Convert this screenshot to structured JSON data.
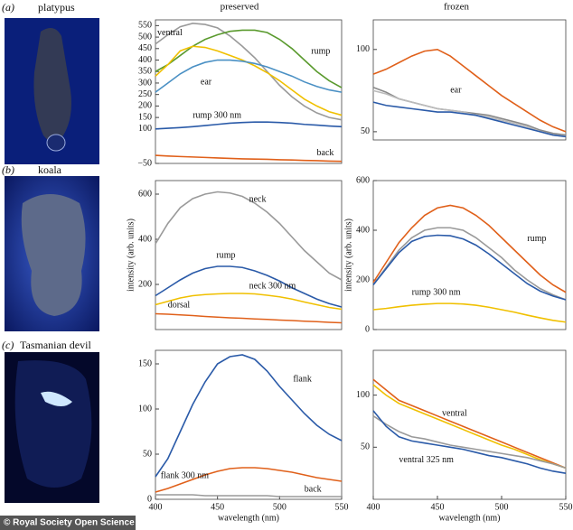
{
  "columns": [
    "preserved",
    "frozen"
  ],
  "panels": [
    {
      "letter": "(a)",
      "name": "platypus"
    },
    {
      "letter": "(b)",
      "name": "koala"
    },
    {
      "letter": "(c)",
      "name": "Tasmanian devil"
    }
  ],
  "credit": "© Royal Society Open Science",
  "chart_data": [
    {
      "type": "line",
      "x": [
        400,
        410,
        420,
        430,
        440,
        450,
        460,
        470,
        480,
        490,
        500,
        510,
        520,
        530,
        540,
        550
      ],
      "xlim": [
        400,
        550
      ],
      "ylim": [
        -50,
        575
      ],
      "yticks": [
        {
          "value": -50,
          "label": "−50"
        },
        100,
        150,
        200,
        250,
        300,
        350,
        400,
        450,
        500,
        550
      ],
      "series": [
        {
          "name": "ventral",
          "color": "#9a9a9a",
          "values": [
            470,
            510,
            545,
            560,
            555,
            540,
            505,
            460,
            410,
            350,
            290,
            240,
            200,
            170,
            150,
            140
          ]
        },
        {
          "name": "rump",
          "color": "#5a9a2e",
          "values": [
            350,
            380,
            420,
            460,
            490,
            510,
            525,
            530,
            530,
            520,
            490,
            450,
            400,
            350,
            310,
            280
          ]
        },
        {
          "color": "#f0c000",
          "values": [
            330,
            380,
            440,
            460,
            455,
            440,
            420,
            400,
            375,
            345,
            310,
            270,
            230,
            200,
            175,
            160
          ]
        },
        {
          "name": "ear",
          "color": "#4a90c4",
          "values": [
            260,
            300,
            340,
            370,
            390,
            400,
            400,
            395,
            385,
            370,
            350,
            330,
            305,
            285,
            270,
            260
          ]
        },
        {
          "name": "rump 300 nm",
          "color": "#2a5aa8",
          "values": [
            100,
            103,
            106,
            110,
            115,
            120,
            125,
            128,
            130,
            130,
            128,
            125,
            120,
            117,
            113,
            110
          ]
        },
        {
          "name": "back",
          "color": "#e0601a",
          "values": [
            -15,
            -18,
            -20,
            -22,
            -24,
            -26,
            -28,
            -30,
            -31,
            -32,
            -34,
            -35,
            -37,
            -38,
            -40,
            -41
          ]
        }
      ]
    },
    {
      "type": "line",
      "x": [
        400,
        410,
        420,
        430,
        440,
        450,
        460,
        470,
        480,
        490,
        500,
        510,
        520,
        530,
        540,
        550
      ],
      "xlim": [
        400,
        550
      ],
      "ylim": [
        45,
        118
      ],
      "yticks": [
        50,
        100
      ],
      "series": [
        {
          "color": "#e0601a",
          "values": [
            85,
            88,
            92,
            96,
            99,
            100,
            96,
            90,
            84,
            78,
            72,
            67,
            62,
            57,
            53,
            50
          ]
        },
        {
          "name": "ear",
          "color": "#8a8a8a",
          "values": [
            77,
            74,
            70,
            68,
            66,
            64,
            63,
            62,
            61,
            60,
            58,
            56,
            54,
            51,
            49,
            48
          ]
        },
        {
          "color": "#bbbbbb",
          "values": [
            75,
            73,
            70,
            68,
            66,
            64,
            63,
            62,
            60,
            59,
            57,
            55,
            53,
            50,
            48,
            47
          ]
        },
        {
          "color": "#2a5aa8",
          "values": [
            68,
            66,
            65,
            64,
            63,
            62,
            62,
            61,
            60,
            58,
            56,
            54,
            52,
            50,
            48,
            47
          ]
        }
      ]
    },
    {
      "type": "line",
      "ylabel": "intensity (arb. units)",
      "x": [
        400,
        410,
        420,
        430,
        440,
        450,
        460,
        470,
        480,
        490,
        500,
        510,
        520,
        530,
        540,
        550
      ],
      "xlim": [
        400,
        550
      ],
      "ylim": [
        0,
        660
      ],
      "yticks": [
        200,
        400,
        600
      ],
      "series": [
        {
          "name": "neck",
          "color": "#9a9a9a",
          "values": [
            380,
            470,
            540,
            580,
            600,
            610,
            605,
            590,
            560,
            520,
            470,
            410,
            350,
            300,
            250,
            220
          ]
        },
        {
          "name": "rump",
          "color": "#2a5aa8",
          "values": [
            150,
            185,
            220,
            250,
            270,
            280,
            280,
            275,
            260,
            240,
            215,
            185,
            160,
            135,
            115,
            100
          ]
        },
        {
          "name": "neck 300 nm",
          "color": "#f0c000",
          "values": [
            110,
            125,
            140,
            150,
            155,
            158,
            160,
            160,
            158,
            152,
            145,
            135,
            122,
            110,
            98,
            90
          ]
        },
        {
          "name": "dorsal",
          "color": "#e0601a",
          "values": [
            70,
            68,
            65,
            62,
            58,
            55,
            52,
            50,
            47,
            45,
            42,
            40,
            37,
            35,
            32,
            30
          ]
        }
      ]
    },
    {
      "type": "line",
      "ylabel": "intensity (arb. units)",
      "x": [
        400,
        410,
        420,
        430,
        440,
        450,
        460,
        470,
        480,
        490,
        500,
        510,
        520,
        530,
        540,
        550
      ],
      "xlim": [
        400,
        550
      ],
      "ylim": [
        0,
        600
      ],
      "yticks": [
        0,
        200,
        400,
        600
      ],
      "series": [
        {
          "name": "rump",
          "color": "#e0601a",
          "values": [
            190,
            270,
            350,
            410,
            460,
            490,
            500,
            490,
            460,
            420,
            370,
            320,
            270,
            220,
            180,
            150
          ]
        },
        {
          "color": "#9a9a9a",
          "values": [
            180,
            250,
            320,
            370,
            400,
            410,
            410,
            400,
            370,
            330,
            290,
            240,
            200,
            165,
            140,
            120
          ]
        },
        {
          "color": "#2a5aa8",
          "values": [
            180,
            245,
            310,
            355,
            375,
            380,
            378,
            365,
            340,
            305,
            265,
            225,
            185,
            155,
            135,
            120
          ]
        },
        {
          "name": "rump 300 nm",
          "color": "#f0c000",
          "values": [
            80,
            85,
            92,
            98,
            102,
            105,
            105,
            103,
            98,
            90,
            80,
            70,
            58,
            47,
            37,
            30
          ]
        }
      ]
    },
    {
      "type": "line",
      "xlabel": "wavelength (nm)",
      "x": [
        400,
        410,
        420,
        430,
        440,
        450,
        460,
        470,
        480,
        490,
        500,
        510,
        520,
        530,
        540,
        550
      ],
      "xlim": [
        400,
        550
      ],
      "xticks": [
        400,
        450,
        500,
        550
      ],
      "ylim": [
        0,
        165
      ],
      "yticks": [
        0,
        50,
        100,
        150
      ],
      "series": [
        {
          "name": "flank",
          "color": "#2a5aa8",
          "values": [
            25,
            45,
            75,
            105,
            130,
            150,
            158,
            160,
            155,
            142,
            125,
            110,
            95,
            82,
            72,
            65
          ]
        },
        {
          "name": "flank 300 nm",
          "color": "#e0601a",
          "values": [
            8,
            12,
            17,
            22,
            27,
            31,
            34,
            35,
            35,
            34,
            32,
            30,
            27,
            24,
            22,
            20
          ]
        },
        {
          "name": "back",
          "color": "#9a9a9a",
          "values": [
            5,
            5,
            5,
            5,
            4,
            4,
            4,
            4,
            4,
            4,
            3,
            3,
            3,
            3,
            3,
            3
          ]
        }
      ]
    },
    {
      "type": "line",
      "xlabel": "wavelength (nm)",
      "x": [
        400,
        410,
        420,
        430,
        440,
        450,
        460,
        470,
        480,
        490,
        500,
        510,
        520,
        530,
        540,
        550
      ],
      "xlim": [
        400,
        550
      ],
      "xticks": [
        400,
        450,
        500,
        550
      ],
      "ylim": [
        0,
        143
      ],
      "yticks": [
        50,
        100
      ],
      "series": [
        {
          "color": "#e0601a",
          "values": [
            115,
            105,
            95,
            90,
            85,
            80,
            75,
            70,
            65,
            60,
            55,
            50,
            45,
            40,
            35,
            30
          ]
        },
        {
          "name": "ventral",
          "color": "#f0c000",
          "values": [
            110,
            100,
            92,
            87,
            82,
            77,
            72,
            67,
            62,
            57,
            52,
            48,
            43,
            38,
            34,
            30
          ]
        },
        {
          "color": "#9a9a9a",
          "values": [
            80,
            72,
            65,
            60,
            58,
            55,
            52,
            50,
            48,
            46,
            44,
            42,
            40,
            37,
            34,
            30
          ]
        },
        {
          "name": "ventral 325 nm",
          "color": "#2a5aa8",
          "values": [
            85,
            70,
            60,
            56,
            54,
            52,
            50,
            48,
            45,
            42,
            40,
            37,
            34,
            30,
            27,
            25
          ]
        }
      ]
    }
  ]
}
